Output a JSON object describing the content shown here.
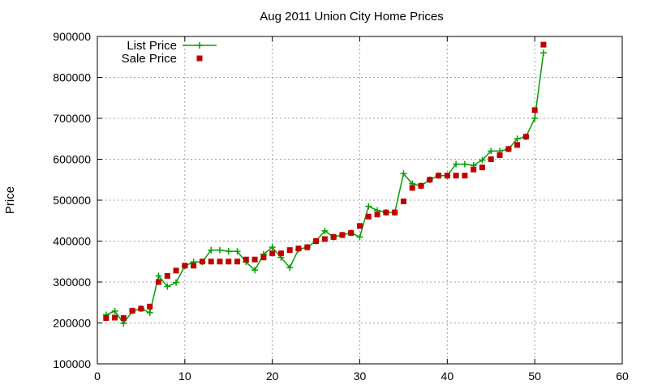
{
  "chart_data": {
    "type": "line",
    "title": "Aug 2011 Union City Home Prices",
    "xlabel": "",
    "ylabel": "Price",
    "xlim": [
      0,
      60
    ],
    "ylim": [
      100000,
      900000
    ],
    "xticks": [
      0,
      10,
      20,
      30,
      40,
      50,
      60
    ],
    "yticks": [
      100000,
      200000,
      300000,
      400000,
      500000,
      600000,
      700000,
      800000,
      900000
    ],
    "grid": true,
    "legend_position": "top-left",
    "series": [
      {
        "name": "List Price",
        "style": "line-plus",
        "color": "#00a000",
        "x": [
          1,
          2,
          3,
          4,
          5,
          6,
          7,
          8,
          9,
          10,
          11,
          12,
          13,
          14,
          15,
          16,
          17,
          18,
          19,
          20,
          21,
          22,
          23,
          24,
          25,
          26,
          27,
          28,
          29,
          30,
          31,
          32,
          33,
          34,
          35,
          36,
          37,
          38,
          39,
          40,
          41,
          42,
          43,
          44,
          45,
          46,
          47,
          48,
          49,
          50,
          51
        ],
        "y": [
          220000,
          229000,
          199000,
          229000,
          235000,
          225000,
          315000,
          289000,
          299000,
          339000,
          349000,
          349000,
          378000,
          378000,
          375000,
          375000,
          349000,
          329000,
          368000,
          385000,
          360000,
          335000,
          380000,
          385000,
          400000,
          425000,
          410000,
          415000,
          420000,
          410000,
          485000,
          475000,
          470000,
          470000,
          565000,
          540000,
          535000,
          550000,
          560000,
          560000,
          588000,
          588000,
          585000,
          598000,
          620000,
          620000,
          625000,
          650000,
          655000,
          700000,
          860000
        ]
      },
      {
        "name": "Sale Price",
        "style": "points-square",
        "color": "#c00000",
        "x": [
          1,
          2,
          3,
          4,
          5,
          6,
          7,
          8,
          9,
          10,
          11,
          12,
          13,
          14,
          15,
          16,
          17,
          18,
          19,
          20,
          21,
          22,
          23,
          24,
          25,
          26,
          27,
          28,
          29,
          30,
          31,
          32,
          33,
          34,
          35,
          36,
          37,
          38,
          39,
          40,
          41,
          42,
          43,
          44,
          45,
          46,
          47,
          48,
          49,
          50,
          51
        ],
        "y": [
          212000,
          213000,
          212000,
          230000,
          235000,
          240000,
          300000,
          315000,
          328000,
          340000,
          340000,
          350000,
          350000,
          350000,
          350000,
          350000,
          355000,
          355000,
          360000,
          370000,
          370000,
          378000,
          382000,
          385000,
          400000,
          405000,
          410000,
          415000,
          420000,
          437000,
          460000,
          465000,
          470000,
          470000,
          497000,
          530000,
          535000,
          550000,
          560000,
          560000,
          560000,
          560000,
          575000,
          580000,
          600000,
          610000,
          625000,
          635000,
          655000,
          720000,
          880000
        ]
      }
    ]
  }
}
